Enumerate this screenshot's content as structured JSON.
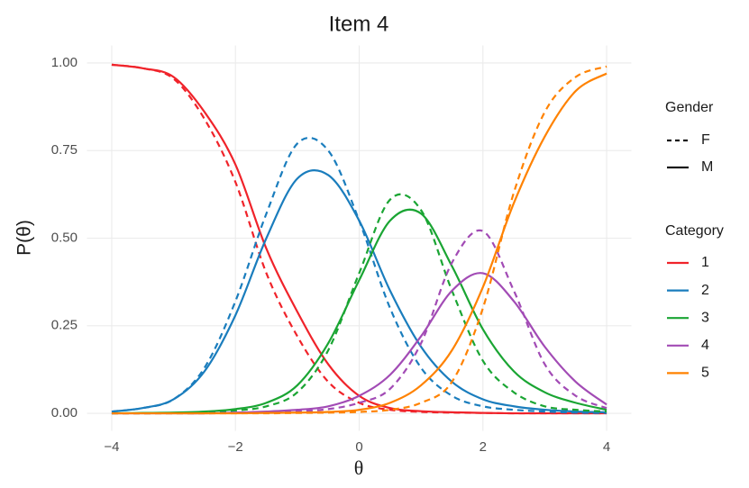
{
  "chart_data": {
    "type": "line",
    "title": "Item 4",
    "x_label": "θ",
    "y_label": "P(θ)",
    "x": [
      -4,
      -3.5,
      -3,
      -2.5,
      -2,
      -1.5,
      -1,
      -0.5,
      0,
      0.5,
      1,
      1.5,
      2,
      2.5,
      3,
      3.5,
      4
    ],
    "xlim": [
      -4.4,
      4.4
    ],
    "xticks": [
      {
        "value": -4,
        "label": "−4"
      },
      {
        "value": -2,
        "label": "−2"
      },
      0,
      2,
      4
    ],
    "ylim": [
      -0.05,
      1.05
    ],
    "yticks": [
      {
        "value": 0,
        "label": "0.00"
      },
      {
        "value": 0.25,
        "label": "0.25"
      },
      {
        "value": 0.5,
        "label": "0.50"
      },
      {
        "value": 0.75,
        "label": "0.75"
      },
      {
        "value": 1,
        "label": "1.00"
      }
    ],
    "grid": true,
    "gender_title": "Gender",
    "genders": [
      {
        "name": "F",
        "dash": "7,5"
      },
      {
        "name": "M",
        "dash": "none"
      }
    ],
    "category_title": "Category",
    "series": [
      {
        "name": "1",
        "color": "#f0232a",
        "lines": [
          {
            "gender": "F",
            "values": [
              0.995,
              0.985,
              0.955,
              0.84,
              0.66,
              0.4,
              0.22,
              0.09,
              0.03,
              0.01,
              0.004,
              0.002,
              0.001,
              0,
              0,
              0,
              0
            ]
          },
          {
            "gender": "M",
            "values": [
              0.995,
              0.985,
              0.96,
              0.86,
              0.71,
              0.47,
              0.29,
              0.14,
              0.05,
              0.015,
              0.006,
              0.003,
              0.001,
              0,
              0,
              0,
              0
            ]
          }
        ]
      },
      {
        "name": "2",
        "color": "#1a7dbd",
        "lines": [
          {
            "gender": "F",
            "values": [
              0.005,
              0.015,
              0.04,
              0.13,
              0.32,
              0.57,
              0.77,
              0.75,
              0.55,
              0.3,
              0.13,
              0.05,
              0.02,
              0.01,
              0.005,
              0.002,
              0.001
            ]
          },
          {
            "gender": "M",
            "values": [
              0.005,
              0.015,
              0.04,
              0.12,
              0.28,
              0.5,
              0.67,
              0.68,
              0.55,
              0.35,
              0.19,
              0.09,
              0.04,
              0.02,
              0.01,
              0.005,
              0.003
            ]
          }
        ]
      },
      {
        "name": "3",
        "color": "#1aa533",
        "lines": [
          {
            "gender": "F",
            "values": [
              0,
              0,
              0.001,
              0.003,
              0.008,
              0.02,
              0.06,
              0.18,
              0.4,
              0.61,
              0.58,
              0.35,
              0.15,
              0.06,
              0.02,
              0.01,
              0.005
            ]
          },
          {
            "gender": "M",
            "values": [
              0,
              0.001,
              0.002,
              0.005,
              0.012,
              0.03,
              0.08,
              0.2,
              0.38,
              0.55,
              0.57,
              0.42,
              0.24,
              0.12,
              0.06,
              0.03,
              0.01
            ]
          }
        ]
      },
      {
        "name": "4",
        "color": "#a24bb5",
        "lines": [
          {
            "gender": "F",
            "values": [
              0,
              0,
              0,
              0,
              0.001,
              0.003,
              0.006,
              0.012,
              0.03,
              0.07,
              0.2,
              0.43,
              0.52,
              0.35,
              0.14,
              0.05,
              0.015
            ]
          },
          {
            "gender": "M",
            "values": [
              0,
              0,
              0,
              0,
              0.002,
              0.005,
              0.01,
              0.02,
              0.05,
              0.11,
              0.22,
              0.35,
              0.4,
              0.32,
              0.19,
              0.09,
              0.025
            ]
          }
        ]
      },
      {
        "name": "5",
        "color": "#ff8200",
        "lines": [
          {
            "gender": "F",
            "values": [
              0,
              0,
              0,
              0,
              0,
              0,
              0.001,
              0.002,
              0.004,
              0.01,
              0.03,
              0.09,
              0.3,
              0.63,
              0.86,
              0.96,
              0.99
            ]
          },
          {
            "gender": "M",
            "values": [
              0,
              0,
              0,
              0,
              0,
              0.001,
              0.002,
              0.004,
              0.01,
              0.03,
              0.08,
              0.18,
              0.36,
              0.6,
              0.79,
              0.92,
              0.97
            ]
          }
        ]
      }
    ]
  }
}
